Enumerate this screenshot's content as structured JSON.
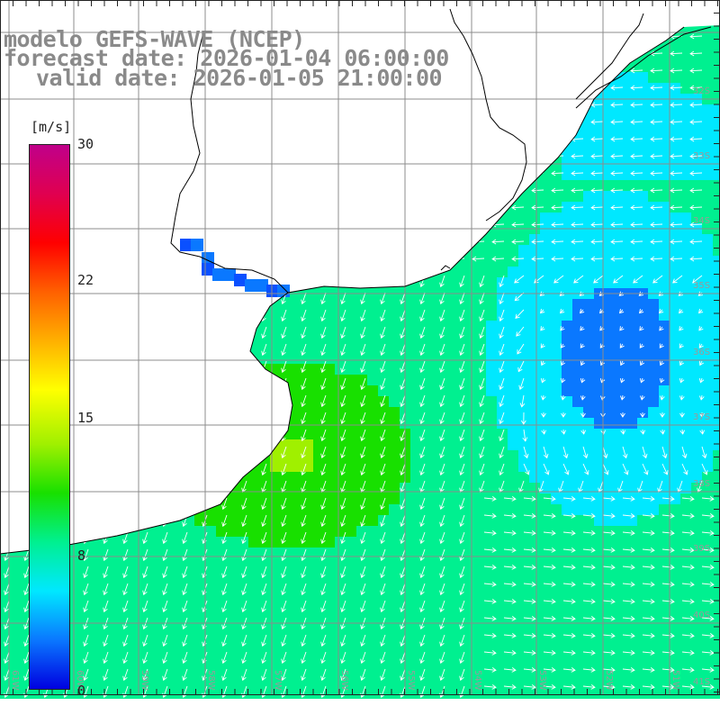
{
  "title": {
    "model": "modelo GEFS-WAVE (NCEP)",
    "forecast": "forecast date: 2026-01-04 06:00:00",
    "valid": "valid date: 2026-01-05 21:00:00"
  },
  "colorbar": {
    "unit": "[m/s]",
    "ticks": [
      "30",
      "22",
      "15",
      "8",
      "0"
    ],
    "tick_values": [
      30,
      22,
      15,
      8,
      0
    ],
    "colors": [
      "#0000e0",
      "#0a78ff",
      "#00e8ff",
      "#00f090",
      "#18e000",
      "#a0f000",
      "#ffff00",
      "#ffb000",
      "#ff6000",
      "#ff0000",
      "#e00050",
      "#c0008a"
    ]
  },
  "latitude_labels": [
    "32S",
    "33S",
    "34S",
    "35S",
    "36S",
    "37S",
    "38S",
    "39S",
    "40S",
    "41S"
  ],
  "longitude_labels": [
    "61W",
    "60W",
    "59W",
    "58W",
    "57W",
    "56W",
    "55W",
    "54W",
    "53W",
    "52W",
    "51W"
  ],
  "colors": {
    "land": "#ffffff",
    "coast": "#000000",
    "grid": "#8c8c8c",
    "arrows": "#ffffff",
    "title": "#8a8a8a"
  }
}
